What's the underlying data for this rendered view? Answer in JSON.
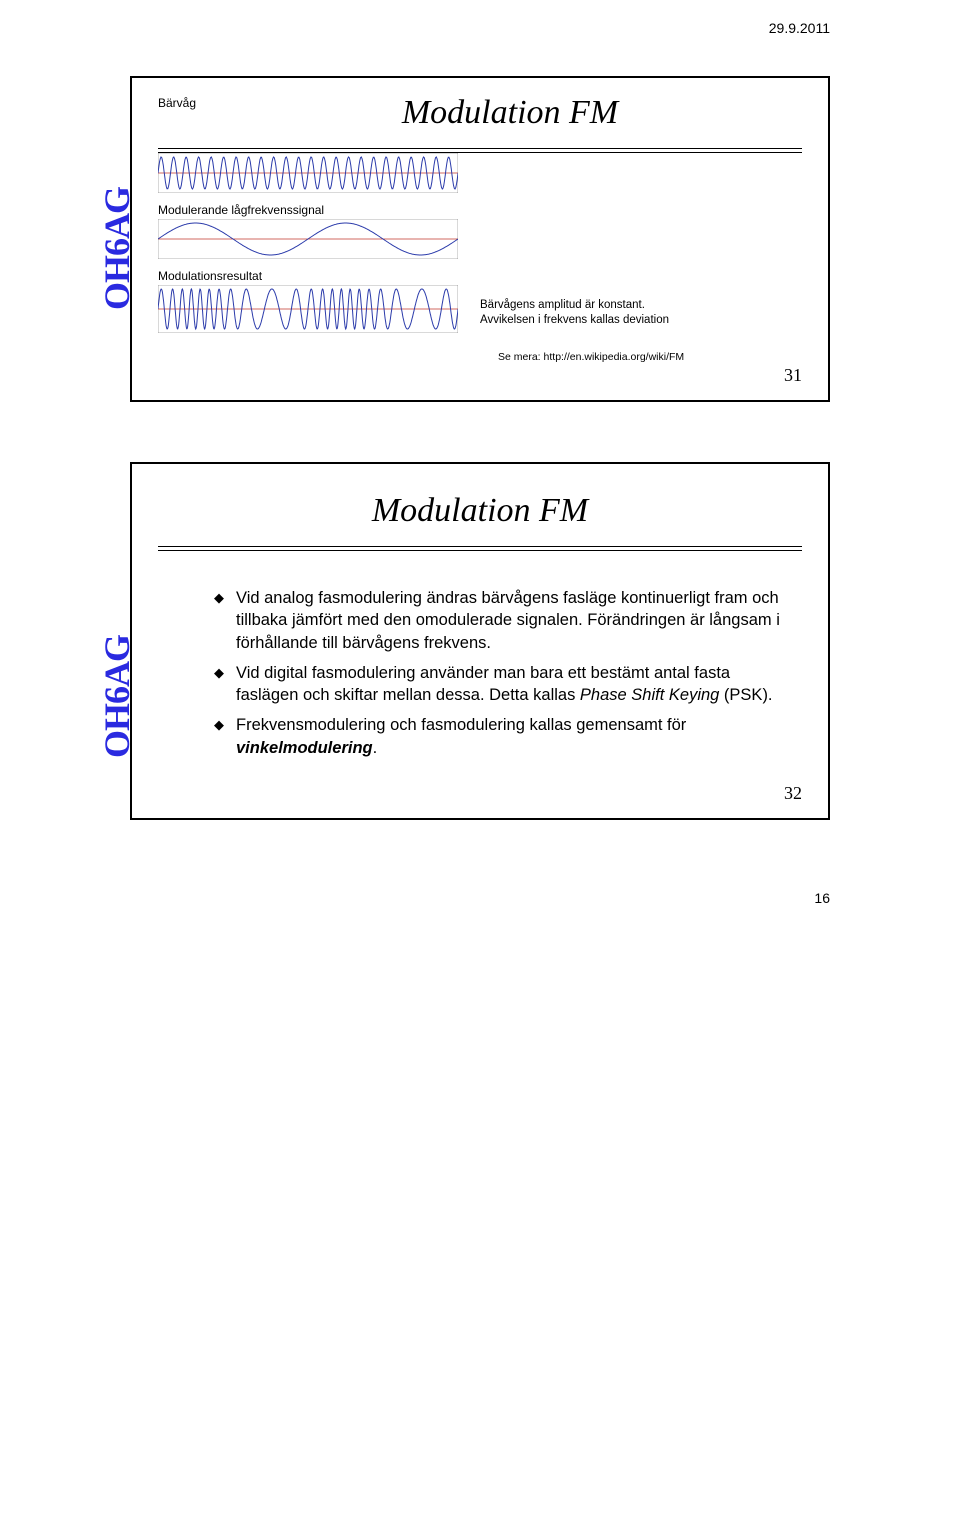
{
  "document": {
    "date": "29.9.2011",
    "page_num": "16"
  },
  "slide1": {
    "logo": "OH6AG",
    "title": "Modulation FM",
    "label_carrier": "Bärvåg",
    "label_modulating": "Modulerande lågfrekvenssignal",
    "label_result": "Modulationsresultat",
    "result_note_line1": "Bärvågens amplitud är konstant.",
    "result_note_line2": "Avvikelsen i frekvens kallas deviation",
    "see_more_prefix": "Se mera: ",
    "see_more_url": "http://en.wikipedia.org/wiki/FM",
    "slide_number": "31",
    "wave_colors": {
      "signal": "#2a3aaa",
      "baseline": "#c0392b",
      "background": "#ffffff",
      "border": "#666666"
    }
  },
  "slide2": {
    "logo": "OH6AG",
    "title": "Modulation FM",
    "bullet1": "Vid analog fasmodulering ändras bärvågens fasläge kontinuerligt fram och tillbaka jämfört med den omodulerade signalen. Förändringen är långsam i förhållande till bärvågens frekvens.",
    "bullet2_a": "Vid digital fasmodulering använder man bara ett bestämt antal fasta faslägen och skiftar mellan dessa. Detta kallas ",
    "bullet2_b_italic": "Phase Shift Keying",
    "bullet2_c": " (PSK).",
    "bullet3_a": "Frekvensmodulering och fasmodulering kallas gemensamt för ",
    "bullet3_b_bold": "vinkelmodulering",
    "bullet3_c": ".",
    "slide_number": "32"
  }
}
